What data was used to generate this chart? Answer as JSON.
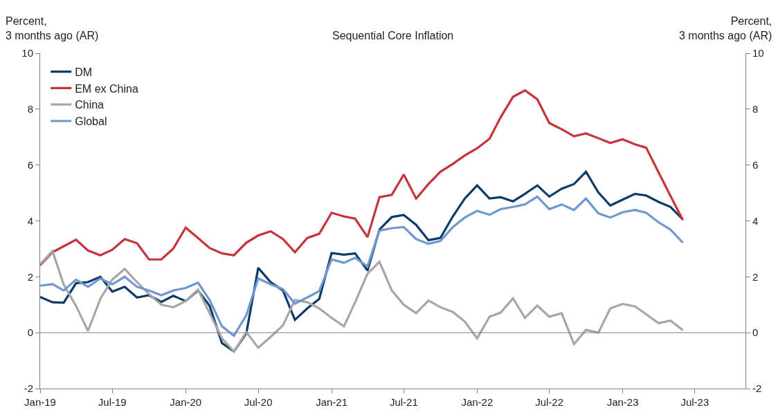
{
  "chart_data": {
    "type": "line",
    "title": "Sequential Core Inflation",
    "ylabel": "Percent,\n3 months ago (AR)",
    "y2label": "Percent,\n3 months ago (AR)",
    "x": [
      "2019-01",
      "2019-02",
      "2019-03",
      "2019-04",
      "2019-05",
      "2019-06",
      "2019-07",
      "2019-08",
      "2019-09",
      "2019-10",
      "2019-11",
      "2019-12",
      "2020-01",
      "2020-02",
      "2020-03",
      "2020-04",
      "2020-05",
      "2020-06",
      "2020-07",
      "2020-08",
      "2020-09",
      "2020-10",
      "2020-11",
      "2020-12",
      "2021-01",
      "2021-02",
      "2021-03",
      "2021-04",
      "2021-05",
      "2021-06",
      "2021-07",
      "2021-08",
      "2021-09",
      "2021-10",
      "2021-11",
      "2021-12",
      "2022-01",
      "2022-02",
      "2022-03",
      "2022-04",
      "2022-05",
      "2022-06",
      "2022-07",
      "2022-08",
      "2022-09",
      "2022-10",
      "2022-11",
      "2022-12",
      "2023-01",
      "2023-02",
      "2023-03",
      "2023-04",
      "2023-05",
      "2023-06"
    ],
    "series": [
      {
        "name": "DM",
        "color": "#0d3a66",
        "values": [
          1.28,
          1.09,
          1.07,
          1.77,
          1.81,
          2.0,
          1.47,
          1.64,
          1.26,
          1.34,
          1.1,
          1.32,
          1.13,
          1.51,
          0.96,
          -0.37,
          -0.67,
          -0.03,
          2.32,
          1.81,
          1.51,
          0.46,
          0.87,
          1.21,
          2.85,
          2.79,
          2.84,
          2.22,
          3.69,
          4.14,
          4.21,
          3.86,
          3.31,
          3.39,
          4.16,
          4.8,
          5.27,
          4.8,
          4.85,
          4.7,
          4.97,
          5.27,
          4.87,
          5.15,
          5.32,
          5.76,
          5.02,
          4.55,
          4.76,
          4.97,
          4.91,
          4.68,
          4.5,
          4.05
        ]
      },
      {
        "name": "EM ex China",
        "color": "#c8323a",
        "values": [
          2.41,
          2.88,
          3.09,
          3.33,
          2.94,
          2.77,
          2.97,
          3.35,
          3.2,
          2.62,
          2.62,
          3.01,
          3.76,
          3.39,
          3.03,
          2.84,
          2.77,
          3.22,
          3.48,
          3.63,
          3.35,
          2.88,
          3.39,
          3.54,
          4.29,
          4.16,
          4.08,
          3.42,
          4.85,
          4.93,
          5.66,
          4.8,
          5.32,
          5.76,
          6.04,
          6.34,
          6.6,
          6.94,
          7.71,
          8.44,
          8.67,
          8.35,
          7.5,
          7.28,
          7.03,
          7.13,
          6.96,
          6.79,
          6.92,
          6.74,
          6.62,
          5.74,
          4.89,
          4.03
        ]
      },
      {
        "name": "China",
        "color": "#a6a6a6",
        "values": [
          2.45,
          2.92,
          1.73,
          0.96,
          0.06,
          1.21,
          1.9,
          2.28,
          1.81,
          1.38,
          1.0,
          0.91,
          1.13,
          1.54,
          0.7,
          -0.2,
          -0.67,
          0.02,
          -0.54,
          -0.15,
          0.26,
          1.17,
          1.09,
          0.87,
          0.53,
          0.23,
          1.09,
          2.11,
          2.54,
          1.51,
          1.0,
          0.7,
          1.15,
          0.91,
          0.74,
          0.4,
          -0.2,
          0.57,
          0.72,
          1.23,
          0.53,
          0.97,
          0.57,
          0.7,
          -0.41,
          0.1,
          0.0,
          0.87,
          1.03,
          0.94,
          0.66,
          0.34,
          0.43,
          0.09
        ]
      },
      {
        "name": "Global",
        "color": "#7097cf",
        "values": [
          1.68,
          1.74,
          1.51,
          1.9,
          1.64,
          1.94,
          1.73,
          2.0,
          1.64,
          1.51,
          1.34,
          1.51,
          1.6,
          1.79,
          1.17,
          0.23,
          -0.11,
          0.62,
          1.94,
          1.73,
          1.56,
          1.04,
          1.26,
          1.49,
          2.62,
          2.5,
          2.68,
          2.37,
          3.65,
          3.74,
          3.78,
          3.35,
          3.18,
          3.28,
          3.78,
          4.12,
          4.36,
          4.22,
          4.42,
          4.5,
          4.59,
          4.87,
          4.42,
          4.59,
          4.39,
          4.8,
          4.27,
          4.12,
          4.31,
          4.39,
          4.29,
          3.95,
          3.69,
          3.22
        ]
      }
    ],
    "xlim": [
      "2019-01-01",
      "2023-11-05"
    ],
    "xticks": [
      {
        "value": "2019-01",
        "label": "Jan-19"
      },
      {
        "value": "2019-07",
        "label": "Jul-19"
      },
      {
        "value": "2020-01",
        "label": "Jan-20"
      },
      {
        "value": "2020-07",
        "label": "Jul-20"
      },
      {
        "value": "2021-01",
        "label": "Jan-21"
      },
      {
        "value": "2021-07",
        "label": "Jul-21"
      },
      {
        "value": "2022-01",
        "label": "Jan-22"
      },
      {
        "value": "2022-07",
        "label": "Jul-22"
      },
      {
        "value": "2023-01",
        "label": "Jan-23"
      },
      {
        "value": "2023-07",
        "label": "Jul-23"
      }
    ],
    "ylim": [
      -2,
      10
    ],
    "yticks": [
      -2,
      0,
      2,
      4,
      6,
      8,
      10
    ],
    "y2lim": [
      -2,
      10
    ],
    "y2ticks": [
      -2,
      0,
      2,
      4,
      6,
      8,
      10
    ],
    "ref_lines": [
      {
        "axis": "y",
        "value": 0,
        "color": "#808080"
      }
    ],
    "legend": "top left",
    "marker": "none",
    "line_style": "solid"
  }
}
